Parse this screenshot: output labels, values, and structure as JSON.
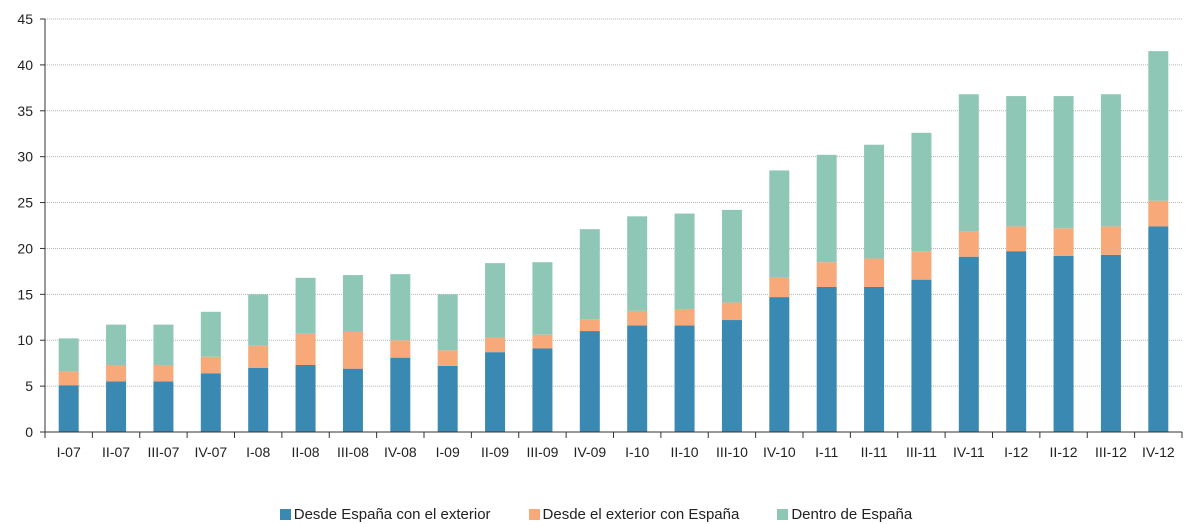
{
  "chart_data": {
    "type": "bar",
    "stacked": true,
    "title": "",
    "xlabel": "",
    "ylabel": "",
    "ylim": [
      0,
      45
    ],
    "yticks": [
      0,
      5,
      10,
      15,
      20,
      25,
      30,
      35,
      40,
      45
    ],
    "grid": "horizontal",
    "legend_position": "bottom",
    "categories": [
      "I-07",
      "II-07",
      "III-07",
      "IV-07",
      "I-08",
      "II-08",
      "III-08",
      "IV-08",
      "I-09",
      "II-09",
      "III-09",
      "IV-09",
      "I-10",
      "II-10",
      "III-10",
      "IV-10",
      "I-11",
      "II-11",
      "III-11",
      "IV-11",
      "I-12",
      "II-12",
      "III-12",
      "IV-12"
    ],
    "series": [
      {
        "name": "Desde España con el exterior",
        "color": "#3a89b3",
        "values": [
          5.1,
          5.5,
          5.5,
          6.4,
          7.0,
          7.3,
          6.9,
          8.1,
          7.2,
          8.7,
          9.1,
          11.0,
          11.6,
          11.6,
          12.2,
          14.7,
          15.8,
          15.8,
          16.6,
          19.1,
          19.7,
          19.2,
          19.3,
          22.4
        ]
      },
      {
        "name": "Desde el exterior con España",
        "color": "#f8a97a",
        "values": [
          1.5,
          1.8,
          1.8,
          1.8,
          2.4,
          3.4,
          4.0,
          1.9,
          1.7,
          1.6,
          1.5,
          1.3,
          1.6,
          1.8,
          1.9,
          2.1,
          2.7,
          3.1,
          3.1,
          2.8,
          2.7,
          3.0,
          3.1,
          2.8
        ]
      },
      {
        "name": "Dentro de España",
        "color": "#8fc7b6",
        "values": [
          3.6,
          4.4,
          4.4,
          4.9,
          5.6,
          6.1,
          6.2,
          7.2,
          6.1,
          8.1,
          7.9,
          9.8,
          10.3,
          10.4,
          10.1,
          11.7,
          11.7,
          12.4,
          12.9,
          14.9,
          14.2,
          14.4,
          14.4,
          16.3
        ]
      }
    ]
  }
}
